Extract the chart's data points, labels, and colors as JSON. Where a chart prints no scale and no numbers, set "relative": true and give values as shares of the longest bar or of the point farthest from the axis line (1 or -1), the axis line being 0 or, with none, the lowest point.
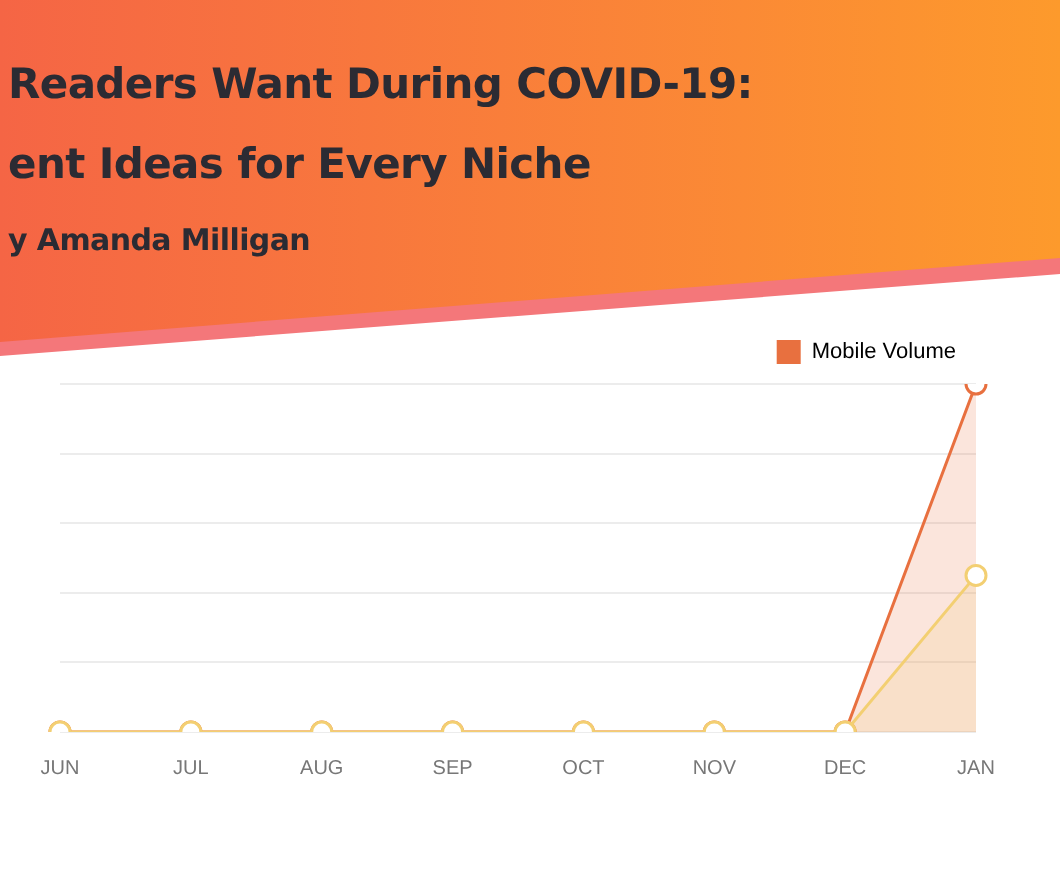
{
  "chart_data": {
    "type": "area",
    "title": "Readers Want During COVID-19:\nent Ideas for Every Niche",
    "subtitle": "y Amanda Milligan",
    "categories": [
      "JUN",
      "JUL",
      "AUG",
      "SEP",
      "OCT",
      "NOV",
      "DEC",
      "JAN"
    ],
    "relative": true,
    "series": [
      {
        "name": "Mobile Volume",
        "color": "#e8703f",
        "values": [
          0,
          0,
          0,
          0,
          0,
          0,
          0,
          1
        ]
      },
      {
        "color": "#f3cf72",
        "values": [
          0,
          0,
          0,
          0,
          0,
          0,
          0,
          0.45
        ]
      }
    ],
    "grid": "y",
    "legend": "top right",
    "marker": "circle",
    "line_style": "solid"
  }
}
